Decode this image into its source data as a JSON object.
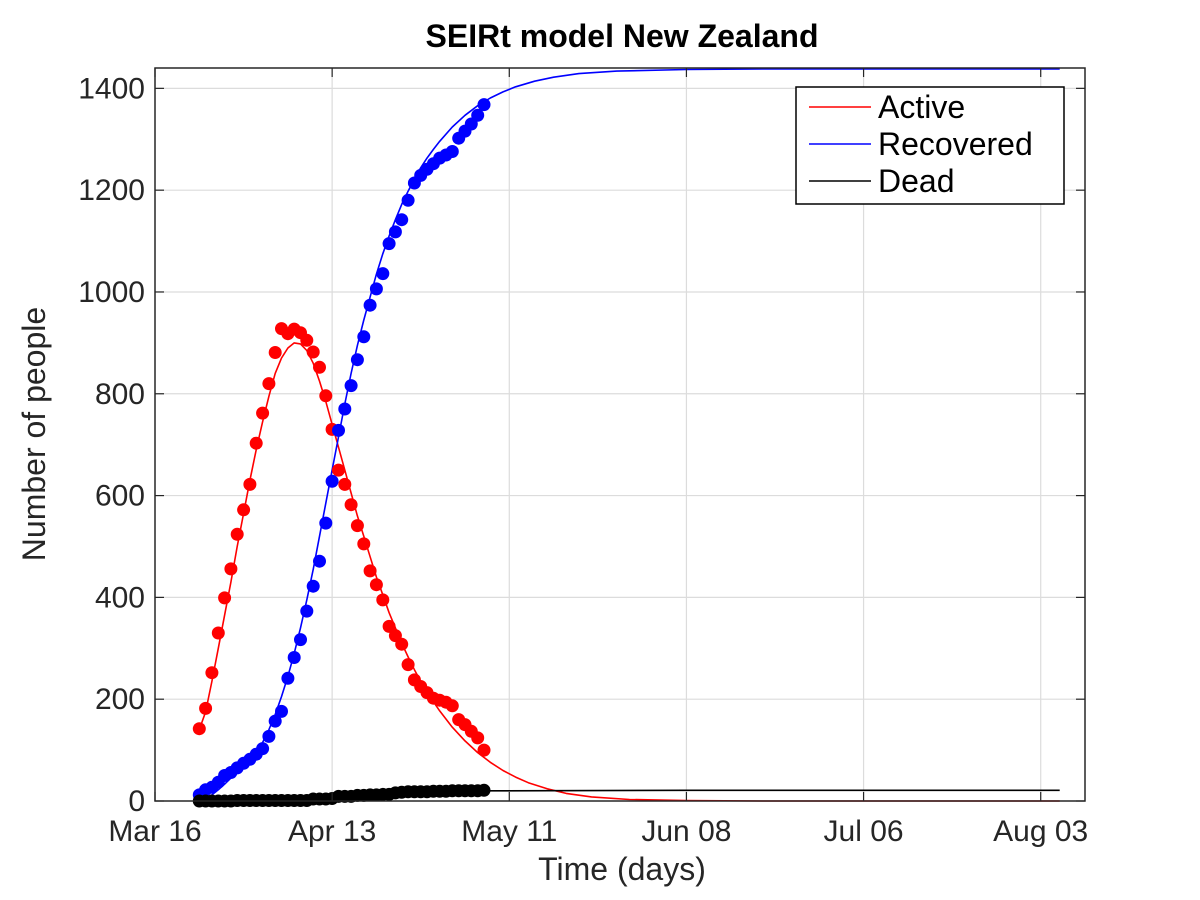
{
  "chart_data": {
    "type": "scatter",
    "title": "SEIRt model New Zealand",
    "xlabel": "Time (days)",
    "ylabel": "Number of people",
    "x_unit": "date (2020)",
    "xlim": [
      "2020-03-16",
      "2020-08-10"
    ],
    "ylim": [
      0,
      1440
    ],
    "x_ticks": [
      "Mar 16",
      "Apr 13",
      "May 11",
      "Jun 08",
      "Jul 06",
      "Aug 03"
    ],
    "y_ticks": [
      0,
      200,
      400,
      600,
      800,
      1000,
      1200,
      1400
    ],
    "grid": true,
    "legend_position": "top-right",
    "observed_start": "2020-03-23",
    "series": [
      {
        "name": "Active",
        "color": "#ff0000",
        "fit_curve": [
          [
            "2020-03-23",
            140
          ],
          [
            "2020-03-24",
            175
          ],
          [
            "2020-03-25",
            235
          ],
          [
            "2020-03-26",
            300
          ],
          [
            "2020-03-27",
            365
          ],
          [
            "2020-03-28",
            430
          ],
          [
            "2020-03-29",
            500
          ],
          [
            "2020-03-30",
            565
          ],
          [
            "2020-03-31",
            630
          ],
          [
            "2020-04-01",
            690
          ],
          [
            "2020-04-02",
            745
          ],
          [
            "2020-04-03",
            795
          ],
          [
            "2020-04-04",
            840
          ],
          [
            "2020-04-05",
            870
          ],
          [
            "2020-04-06",
            890
          ],
          [
            "2020-04-07",
            900
          ],
          [
            "2020-04-08",
            898
          ],
          [
            "2020-04-09",
            885
          ],
          [
            "2020-04-10",
            860
          ],
          [
            "2020-04-11",
            825
          ],
          [
            "2020-04-12",
            785
          ],
          [
            "2020-04-13",
            740
          ],
          [
            "2020-04-14",
            695
          ],
          [
            "2020-04-15",
            650
          ],
          [
            "2020-04-16",
            605
          ],
          [
            "2020-04-17",
            560
          ],
          [
            "2020-04-18",
            520
          ],
          [
            "2020-04-19",
            480
          ],
          [
            "2020-04-20",
            440
          ],
          [
            "2020-04-21",
            405
          ],
          [
            "2020-04-22",
            370
          ],
          [
            "2020-04-23",
            340
          ],
          [
            "2020-04-24",
            310
          ],
          [
            "2020-04-25",
            283
          ],
          [
            "2020-04-26",
            258
          ],
          [
            "2020-04-27",
            235
          ],
          [
            "2020-04-28",
            214
          ],
          [
            "2020-04-29",
            195
          ],
          [
            "2020-04-30",
            177
          ],
          [
            "2020-05-02",
            145
          ],
          [
            "2020-05-04",
            118
          ],
          [
            "2020-05-06",
            95
          ],
          [
            "2020-05-08",
            76
          ],
          [
            "2020-05-10",
            60
          ],
          [
            "2020-05-12",
            47
          ],
          [
            "2020-05-14",
            36
          ],
          [
            "2020-05-17",
            24
          ],
          [
            "2020-05-20",
            15
          ],
          [
            "2020-05-24",
            8
          ],
          [
            "2020-05-30",
            3
          ],
          [
            "2020-06-08",
            1
          ],
          [
            "2020-06-20",
            0
          ],
          [
            "2020-08-06",
            0
          ]
        ],
        "observed": [
          [
            "2020-03-23",
            142
          ],
          [
            "2020-03-24",
            182
          ],
          [
            "2020-03-25",
            252
          ],
          [
            "2020-03-26",
            330
          ],
          [
            "2020-03-27",
            399
          ],
          [
            "2020-03-28",
            456
          ],
          [
            "2020-03-29",
            524
          ],
          [
            "2020-03-30",
            572
          ],
          [
            "2020-03-31",
            622
          ],
          [
            "2020-04-01",
            703
          ],
          [
            "2020-04-02",
            762
          ],
          [
            "2020-04-03",
            820
          ],
          [
            "2020-04-04",
            881
          ],
          [
            "2020-04-05",
            928
          ],
          [
            "2020-04-06",
            918
          ],
          [
            "2020-04-07",
            927
          ],
          [
            "2020-04-08",
            920
          ],
          [
            "2020-04-09",
            905
          ],
          [
            "2020-04-10",
            882
          ],
          [
            "2020-04-11",
            852
          ],
          [
            "2020-04-12",
            796
          ],
          [
            "2020-04-13",
            730
          ],
          [
            "2020-04-14",
            650
          ],
          [
            "2020-04-15",
            622
          ],
          [
            "2020-04-16",
            582
          ],
          [
            "2020-04-17",
            541
          ],
          [
            "2020-04-18",
            505
          ],
          [
            "2020-04-19",
            452
          ],
          [
            "2020-04-20",
            425
          ],
          [
            "2020-04-21",
            395
          ],
          [
            "2020-04-22",
            343
          ],
          [
            "2020-04-23",
            325
          ],
          [
            "2020-04-24",
            308
          ],
          [
            "2020-04-25",
            268
          ],
          [
            "2020-04-26",
            238
          ],
          [
            "2020-04-27",
            225
          ],
          [
            "2020-04-28",
            213
          ],
          [
            "2020-04-29",
            202
          ],
          [
            "2020-04-30",
            198
          ],
          [
            "2020-05-01",
            194
          ],
          [
            "2020-05-02",
            187
          ],
          [
            "2020-05-03",
            160
          ],
          [
            "2020-05-04",
            150
          ],
          [
            "2020-05-05",
            137
          ],
          [
            "2020-05-06",
            124
          ],
          [
            "2020-05-07",
            100
          ]
        ]
      },
      {
        "name": "Recovered",
        "color": "#0000ff",
        "fit_curve": [
          [
            "2020-03-23",
            0
          ],
          [
            "2020-03-24",
            5
          ],
          [
            "2020-03-25",
            12
          ],
          [
            "2020-03-26",
            22
          ],
          [
            "2020-03-27",
            33
          ],
          [
            "2020-03-28",
            45
          ],
          [
            "2020-03-29",
            57
          ],
          [
            "2020-03-30",
            70
          ],
          [
            "2020-03-31",
            83
          ],
          [
            "2020-04-01",
            98
          ],
          [
            "2020-04-02",
            115
          ],
          [
            "2020-04-03",
            140
          ],
          [
            "2020-04-04",
            170
          ],
          [
            "2020-04-05",
            205
          ],
          [
            "2020-04-06",
            245
          ],
          [
            "2020-04-07",
            290
          ],
          [
            "2020-04-08",
            340
          ],
          [
            "2020-04-09",
            395
          ],
          [
            "2020-04-10",
            455
          ],
          [
            "2020-04-11",
            520
          ],
          [
            "2020-04-12",
            585
          ],
          [
            "2020-04-13",
            650
          ],
          [
            "2020-04-14",
            715
          ],
          [
            "2020-04-15",
            780
          ],
          [
            "2020-04-16",
            840
          ],
          [
            "2020-04-17",
            895
          ],
          [
            "2020-04-18",
            945
          ],
          [
            "2020-04-19",
            990
          ],
          [
            "2020-04-20",
            1035
          ],
          [
            "2020-04-21",
            1075
          ],
          [
            "2020-04-22",
            1110
          ],
          [
            "2020-04-23",
            1142
          ],
          [
            "2020-04-24",
            1172
          ],
          [
            "2020-04-25",
            1198
          ],
          [
            "2020-04-26",
            1222
          ],
          [
            "2020-04-27",
            1244
          ],
          [
            "2020-04-28",
            1263
          ],
          [
            "2020-04-29",
            1280
          ],
          [
            "2020-04-30",
            1296
          ],
          [
            "2020-05-02",
            1324
          ],
          [
            "2020-05-04",
            1347
          ],
          [
            "2020-05-06",
            1366
          ],
          [
            "2020-05-08",
            1381
          ],
          [
            "2020-05-10",
            1393
          ],
          [
            "2020-05-12",
            1403
          ],
          [
            "2020-05-15",
            1414
          ],
          [
            "2020-05-18",
            1422
          ],
          [
            "2020-05-22",
            1429
          ],
          [
            "2020-05-28",
            1434
          ],
          [
            "2020-06-08",
            1437
          ],
          [
            "2020-06-20",
            1438
          ],
          [
            "2020-08-06",
            1438
          ]
        ],
        "observed": [
          [
            "2020-03-23",
            12
          ],
          [
            "2020-03-24",
            22
          ],
          [
            "2020-03-25",
            27
          ],
          [
            "2020-03-26",
            37
          ],
          [
            "2020-03-27",
            50
          ],
          [
            "2020-03-28",
            56
          ],
          [
            "2020-03-29",
            65
          ],
          [
            "2020-03-30",
            74
          ],
          [
            "2020-03-31",
            82
          ],
          [
            "2020-04-01",
            92
          ],
          [
            "2020-04-02",
            103
          ],
          [
            "2020-04-03",
            127
          ],
          [
            "2020-04-04",
            157
          ],
          [
            "2020-04-05",
            176
          ],
          [
            "2020-04-06",
            241
          ],
          [
            "2020-04-07",
            282
          ],
          [
            "2020-04-08",
            317
          ],
          [
            "2020-04-09",
            373
          ],
          [
            "2020-04-10",
            422
          ],
          [
            "2020-04-11",
            471
          ],
          [
            "2020-04-12",
            546
          ],
          [
            "2020-04-13",
            628
          ],
          [
            "2020-04-14",
            728
          ],
          [
            "2020-04-15",
            770
          ],
          [
            "2020-04-16",
            816
          ],
          [
            "2020-04-17",
            867
          ],
          [
            "2020-04-18",
            912
          ],
          [
            "2020-04-19",
            974
          ],
          [
            "2020-04-20",
            1006
          ],
          [
            "2020-04-21",
            1036
          ],
          [
            "2020-04-22",
            1095
          ],
          [
            "2020-04-23",
            1118
          ],
          [
            "2020-04-24",
            1142
          ],
          [
            "2020-04-25",
            1180
          ],
          [
            "2020-04-26",
            1214
          ],
          [
            "2020-04-27",
            1229
          ],
          [
            "2020-04-28",
            1241
          ],
          [
            "2020-04-29",
            1252
          ],
          [
            "2020-04-30",
            1263
          ],
          [
            "2020-05-01",
            1269
          ],
          [
            "2020-05-02",
            1276
          ],
          [
            "2020-05-03",
            1302
          ],
          [
            "2020-05-04",
            1316
          ],
          [
            "2020-05-05",
            1330
          ],
          [
            "2020-05-06",
            1347
          ],
          [
            "2020-05-07",
            1368
          ]
        ]
      },
      {
        "name": "Dead",
        "color": "#000000",
        "fit_curve": [
          [
            "2020-03-23",
            0
          ],
          [
            "2020-03-27",
            1
          ],
          [
            "2020-03-31",
            2
          ],
          [
            "2020-04-04",
            3
          ],
          [
            "2020-04-07",
            5
          ],
          [
            "2020-04-10",
            8
          ],
          [
            "2020-04-13",
            11
          ],
          [
            "2020-04-16",
            14
          ],
          [
            "2020-04-19",
            16
          ],
          [
            "2020-04-22",
            18
          ],
          [
            "2020-04-26",
            19
          ],
          [
            "2020-05-01",
            20
          ],
          [
            "2020-05-10",
            20
          ],
          [
            "2020-06-08",
            21
          ],
          [
            "2020-08-06",
            21
          ]
        ],
        "observed": [
          [
            "2020-03-23",
            0
          ],
          [
            "2020-03-24",
            0
          ],
          [
            "2020-03-25",
            0
          ],
          [
            "2020-03-26",
            0
          ],
          [
            "2020-03-27",
            0
          ],
          [
            "2020-03-28",
            0
          ],
          [
            "2020-03-29",
            1
          ],
          [
            "2020-03-30",
            1
          ],
          [
            "2020-03-31",
            1
          ],
          [
            "2020-04-01",
            1
          ],
          [
            "2020-04-02",
            1
          ],
          [
            "2020-04-03",
            1
          ],
          [
            "2020-04-04",
            1
          ],
          [
            "2020-04-05",
            1
          ],
          [
            "2020-04-06",
            1
          ],
          [
            "2020-04-07",
            1
          ],
          [
            "2020-04-08",
            1
          ],
          [
            "2020-04-09",
            1
          ],
          [
            "2020-04-10",
            4
          ],
          [
            "2020-04-11",
            4
          ],
          [
            "2020-04-12",
            4
          ],
          [
            "2020-04-13",
            5
          ],
          [
            "2020-04-14",
            9
          ],
          [
            "2020-04-15",
            9
          ],
          [
            "2020-04-16",
            9
          ],
          [
            "2020-04-17",
            11
          ],
          [
            "2020-04-18",
            11
          ],
          [
            "2020-04-19",
            12
          ],
          [
            "2020-04-20",
            12
          ],
          [
            "2020-04-21",
            13
          ],
          [
            "2020-04-22",
            13
          ],
          [
            "2020-04-23",
            16
          ],
          [
            "2020-04-24",
            17
          ],
          [
            "2020-04-25",
            18
          ],
          [
            "2020-04-26",
            18
          ],
          [
            "2020-04-27",
            18
          ],
          [
            "2020-04-28",
            18
          ],
          [
            "2020-04-29",
            19
          ],
          [
            "2020-04-30",
            19
          ],
          [
            "2020-05-01",
            19
          ],
          [
            "2020-05-02",
            20
          ],
          [
            "2020-05-03",
            20
          ],
          [
            "2020-05-04",
            20
          ],
          [
            "2020-05-05",
            20
          ],
          [
            "2020-05-06",
            20
          ],
          [
            "2020-05-07",
            21
          ]
        ]
      }
    ]
  }
}
